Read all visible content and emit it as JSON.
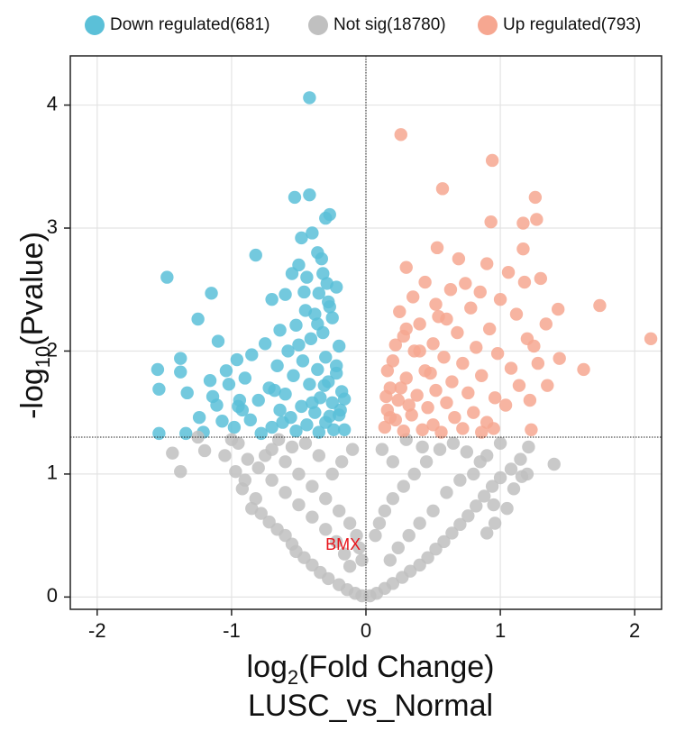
{
  "chart_data": {
    "type": "scatter",
    "subtitle": "LUSC_vs_Normal",
    "xlabel": {
      "prefix": "log",
      "sub": "2",
      "suffix": "(Fold Change)"
    },
    "ylabel": {
      "prefix": "-log",
      "sub": "10",
      "suffix": "(Pvalue)"
    },
    "xlim": [
      -2.2,
      2.2
    ],
    "ylim": [
      -0.1,
      4.4
    ],
    "x_ticks": [
      -2,
      -1,
      0,
      1,
      2
    ],
    "x_tick_labels": [
      "-2",
      "-1",
      "0",
      "1",
      "2"
    ],
    "y_ticks": [
      0,
      1,
      2,
      3,
      4
    ],
    "y_tick_labels": [
      "0",
      "1",
      "2",
      "3",
      "4"
    ],
    "grid": true,
    "legend_position": "top",
    "threshold_lines": {
      "y": 1.3,
      "x": 0
    },
    "series": [
      {
        "name": "Down regulated(681)",
        "color": "#5bc0d8",
        "points": [
          [
            -0.42,
            4.06
          ],
          [
            -0.42,
            3.27
          ],
          [
            -0.53,
            3.25
          ],
          [
            -0.27,
            3.11
          ],
          [
            -0.3,
            3.08
          ],
          [
            -0.4,
            2.96
          ],
          [
            -0.48,
            2.92
          ],
          [
            -0.36,
            2.8
          ],
          [
            -0.33,
            2.75
          ],
          [
            -0.82,
            2.78
          ],
          [
            -0.5,
            2.7
          ],
          [
            -0.55,
            2.63
          ],
          [
            -0.44,
            2.6
          ],
          [
            -0.29,
            2.55
          ],
          [
            -0.22,
            2.52
          ],
          [
            -0.35,
            2.47
          ],
          [
            -0.6,
            2.46
          ],
          [
            -0.7,
            2.42
          ],
          [
            -0.28,
            2.4
          ],
          [
            -0.45,
            2.33
          ],
          [
            -0.38,
            2.3
          ],
          [
            -0.25,
            2.27
          ],
          [
            -0.52,
            2.21
          ],
          [
            -0.64,
            2.17
          ],
          [
            -0.32,
            2.15
          ],
          [
            -0.41,
            2.1
          ],
          [
            -0.75,
            2.06
          ],
          [
            -0.2,
            2.04
          ],
          [
            -0.58,
            2.0
          ],
          [
            -0.85,
            1.97
          ],
          [
            -0.3,
            1.95
          ],
          [
            -0.47,
            1.92
          ],
          [
            -0.66,
            1.88
          ],
          [
            -0.36,
            1.85
          ],
          [
            -0.22,
            1.82
          ],
          [
            -0.54,
            1.8
          ],
          [
            -0.9,
            1.78
          ],
          [
            -0.28,
            1.75
          ],
          [
            -0.42,
            1.73
          ],
          [
            -0.72,
            1.7
          ],
          [
            -0.18,
            1.67
          ],
          [
            -0.6,
            1.65
          ],
          [
            -0.34,
            1.62
          ],
          [
            -0.8,
            1.6
          ],
          [
            -0.25,
            1.58
          ],
          [
            -0.48,
            1.55
          ],
          [
            -0.64,
            1.52
          ],
          [
            -0.38,
            1.5
          ],
          [
            -0.2,
            1.48
          ],
          [
            -0.56,
            1.46
          ],
          [
            -0.86,
            1.44
          ],
          [
            -0.3,
            1.42
          ],
          [
            -0.44,
            1.4
          ],
          [
            -0.7,
            1.38
          ],
          [
            -0.24,
            1.36
          ],
          [
            -0.52,
            1.35
          ],
          [
            -0.35,
            1.34
          ],
          [
            -0.78,
            1.33
          ],
          [
            -0.16,
            1.36
          ],
          [
            -0.62,
            1.42
          ],
          [
            -0.27,
            1.47
          ],
          [
            -0.95,
            1.55
          ],
          [
            -0.4,
            1.58
          ],
          [
            -0.16,
            1.61
          ],
          [
            -0.68,
            1.68
          ],
          [
            -0.31,
            1.72
          ],
          [
            -0.22,
            1.88
          ],
          [
            -0.5,
            2.05
          ],
          [
            -0.36,
            2.22
          ],
          [
            -0.27,
            2.36
          ],
          [
            -0.46,
            2.48
          ],
          [
            -0.32,
            2.63
          ],
          [
            -0.19,
            1.52
          ],
          [
            -1.48,
            2.6
          ],
          [
            -1.15,
            2.47
          ],
          [
            -1.25,
            2.26
          ],
          [
            -1.1,
            2.08
          ],
          [
            -1.38,
            1.94
          ],
          [
            -1.55,
            1.85
          ],
          [
            -1.38,
            1.83
          ],
          [
            -1.04,
            1.84
          ],
          [
            -0.96,
            1.93
          ],
          [
            -1.16,
            1.76
          ],
          [
            -1.02,
            1.73
          ],
          [
            -1.54,
            1.69
          ],
          [
            -1.33,
            1.66
          ],
          [
            -1.14,
            1.63
          ],
          [
            -0.94,
            1.6
          ],
          [
            -1.11,
            1.56
          ],
          [
            -1.24,
            1.46
          ],
          [
            -1.07,
            1.43
          ],
          [
            -1.34,
            1.33
          ],
          [
            -1.54,
            1.33
          ],
          [
            -1.21,
            1.34
          ],
          [
            -0.98,
            1.38
          ],
          [
            -0.92,
            1.52
          ]
        ]
      },
      {
        "name": "Not sig(18780)",
        "color": "#c0c0c0",
        "points": [
          [
            -1.44,
            1.17
          ],
          [
            -1.38,
            1.02
          ],
          [
            -1.25,
            1.3
          ],
          [
            -1.2,
            1.19
          ],
          [
            -0.97,
            1.02
          ],
          [
            -0.92,
            0.88
          ],
          [
            -0.9,
            0.95
          ],
          [
            -0.82,
            0.8
          ],
          [
            -0.85,
            0.72
          ],
          [
            -0.78,
            0.68
          ],
          [
            -0.72,
            0.61
          ],
          [
            -0.66,
            0.55
          ],
          [
            -0.6,
            0.5
          ],
          [
            -0.55,
            0.43
          ],
          [
            -0.52,
            0.37
          ],
          [
            -0.46,
            0.32
          ],
          [
            -0.4,
            0.26
          ],
          [
            -0.34,
            0.2
          ],
          [
            -0.28,
            0.15
          ],
          [
            -0.2,
            0.1
          ],
          [
            -0.14,
            0.06
          ],
          [
            -0.08,
            0.03
          ],
          [
            -0.03,
            0.01
          ],
          [
            0.03,
            0.01
          ],
          [
            0.08,
            0.03
          ],
          [
            0.14,
            0.07
          ],
          [
            0.2,
            0.11
          ],
          [
            0.27,
            0.16
          ],
          [
            0.33,
            0.21
          ],
          [
            0.4,
            0.26
          ],
          [
            0.46,
            0.32
          ],
          [
            0.52,
            0.39
          ],
          [
            0.58,
            0.45
          ],
          [
            0.64,
            0.52
          ],
          [
            0.7,
            0.59
          ],
          [
            0.76,
            0.66
          ],
          [
            0.82,
            0.74
          ],
          [
            0.88,
            0.82
          ],
          [
            0.94,
            0.9
          ],
          [
            1.0,
            0.97
          ],
          [
            1.08,
            1.04
          ],
          [
            1.15,
            1.12
          ],
          [
            1.21,
            1.22
          ],
          [
            1.4,
            1.08
          ],
          [
            1.16,
            0.98
          ],
          [
            1.05,
            0.72
          ],
          [
            0.96,
            0.6
          ],
          [
            0.9,
            0.52
          ],
          [
            -0.7,
            1.2
          ],
          [
            -0.6,
            1.1
          ],
          [
            -0.5,
            1.0
          ],
          [
            -0.4,
            0.9
          ],
          [
            -0.3,
            0.8
          ],
          [
            -0.2,
            0.7
          ],
          [
            -0.12,
            0.6
          ],
          [
            -0.07,
            0.5
          ],
          [
            -0.05,
            0.4
          ],
          [
            -0.03,
            0.3
          ],
          [
            -0.1,
            1.2
          ],
          [
            -0.18,
            1.1
          ],
          [
            -0.25,
            1.0
          ],
          [
            -0.35,
            1.15
          ],
          [
            -0.45,
            1.25
          ],
          [
            -0.55,
            1.22
          ],
          [
            -0.65,
            1.28
          ],
          [
            -0.75,
            1.15
          ],
          [
            -0.8,
            1.05
          ],
          [
            -0.7,
            0.95
          ],
          [
            -0.6,
            0.85
          ],
          [
            -0.5,
            0.75
          ],
          [
            -0.4,
            0.65
          ],
          [
            -0.3,
            0.55
          ],
          [
            -0.22,
            0.45
          ],
          [
            -0.16,
            0.35
          ],
          [
            -0.12,
            0.25
          ],
          [
            0.07,
            0.5
          ],
          [
            0.1,
            0.6
          ],
          [
            0.14,
            0.7
          ],
          [
            0.2,
            0.8
          ],
          [
            0.28,
            0.9
          ],
          [
            0.36,
            1.0
          ],
          [
            0.45,
            1.1
          ],
          [
            0.55,
            1.2
          ],
          [
            0.65,
            1.25
          ],
          [
            0.75,
            1.18
          ],
          [
            0.85,
            1.1
          ],
          [
            0.12,
            1.2
          ],
          [
            0.2,
            1.1
          ],
          [
            0.3,
            1.28
          ],
          [
            0.42,
            1.22
          ],
          [
            0.5,
            0.7
          ],
          [
            0.4,
            0.6
          ],
          [
            0.32,
            0.5
          ],
          [
            0.24,
            0.4
          ],
          [
            0.18,
            0.3
          ],
          [
            0.6,
            0.85
          ],
          [
            0.7,
            0.95
          ],
          [
            0.8,
            1.0
          ],
          [
            0.9,
            1.15
          ],
          [
            1.0,
            1.25
          ],
          [
            -0.95,
            1.25
          ],
          [
            -1.05,
            1.15
          ],
          [
            -1.0,
            1.28
          ],
          [
            -0.88,
            1.12
          ],
          [
            0.95,
            0.75
          ],
          [
            1.1,
            0.88
          ],
          [
            1.2,
            1.0
          ]
        ]
      },
      {
        "name": "Up regulated(793)",
        "color": "#f6a791",
        "points": [
          [
            0.26,
            3.76
          ],
          [
            0.94,
            3.55
          ],
          [
            0.57,
            3.32
          ],
          [
            1.26,
            3.25
          ],
          [
            1.27,
            3.07
          ],
          [
            0.93,
            3.05
          ],
          [
            1.17,
            3.04
          ],
          [
            0.53,
            2.84
          ],
          [
            1.17,
            2.83
          ],
          [
            0.69,
            2.75
          ],
          [
            0.9,
            2.71
          ],
          [
            0.3,
            2.68
          ],
          [
            1.3,
            2.59
          ],
          [
            0.74,
            2.55
          ],
          [
            1.06,
            2.64
          ],
          [
            0.44,
            2.56
          ],
          [
            1.18,
            2.56
          ],
          [
            0.63,
            2.5
          ],
          [
            0.85,
            2.48
          ],
          [
            0.35,
            2.44
          ],
          [
            1.0,
            2.42
          ],
          [
            0.52,
            2.38
          ],
          [
            0.78,
            2.35
          ],
          [
            0.25,
            2.32
          ],
          [
            1.12,
            2.3
          ],
          [
            0.6,
            2.26
          ],
          [
            0.4,
            2.22
          ],
          [
            0.92,
            2.18
          ],
          [
            0.68,
            2.15
          ],
          [
            0.28,
            2.12
          ],
          [
            1.2,
            2.1
          ],
          [
            0.5,
            2.06
          ],
          [
            0.82,
            2.03
          ],
          [
            0.36,
            2.0
          ],
          [
            0.98,
            1.98
          ],
          [
            0.58,
            1.95
          ],
          [
            0.2,
            1.92
          ],
          [
            0.72,
            1.9
          ],
          [
            1.08,
            1.86
          ],
          [
            0.44,
            1.84
          ],
          [
            0.86,
            1.8
          ],
          [
            0.3,
            1.78
          ],
          [
            0.64,
            1.75
          ],
          [
            1.14,
            1.72
          ],
          [
            0.18,
            1.7
          ],
          [
            0.52,
            1.68
          ],
          [
            0.76,
            1.66
          ],
          [
            0.38,
            1.64
          ],
          [
            0.96,
            1.62
          ],
          [
            0.24,
            1.6
          ],
          [
            0.6,
            1.58
          ],
          [
            1.04,
            1.56
          ],
          [
            0.46,
            1.54
          ],
          [
            0.16,
            1.52
          ],
          [
            0.8,
            1.5
          ],
          [
            0.34,
            1.48
          ],
          [
            0.66,
            1.46
          ],
          [
            0.22,
            1.44
          ],
          [
            0.9,
            1.42
          ],
          [
            0.5,
            1.4
          ],
          [
            0.14,
            1.38
          ],
          [
            0.72,
            1.37
          ],
          [
            0.42,
            1.36
          ],
          [
            0.28,
            1.35
          ],
          [
            0.86,
            1.34
          ],
          [
            0.56,
            1.34
          ],
          [
            0.18,
            1.46
          ],
          [
            0.32,
            1.56
          ],
          [
            0.26,
            1.7
          ],
          [
            0.48,
            1.82
          ],
          [
            0.4,
            2.0
          ],
          [
            0.3,
            2.18
          ],
          [
            0.54,
            2.28
          ],
          [
            0.22,
            2.05
          ],
          [
            0.16,
            1.84
          ],
          [
            1.74,
            2.37
          ],
          [
            1.43,
            2.34
          ],
          [
            2.12,
            2.1
          ],
          [
            1.44,
            1.94
          ],
          [
            1.62,
            1.85
          ],
          [
            1.22,
            1.6
          ],
          [
            1.23,
            1.36
          ],
          [
            0.95,
            1.37
          ],
          [
            1.35,
            1.72
          ],
          [
            1.28,
            1.9
          ],
          [
            1.34,
            2.22
          ],
          [
            1.25,
            2.04
          ],
          [
            0.15,
            1.63
          ]
        ]
      }
    ],
    "annotations": [
      {
        "text": "BMX",
        "x": -0.17,
        "y": 0.42,
        "color": "#e8141b"
      }
    ]
  }
}
